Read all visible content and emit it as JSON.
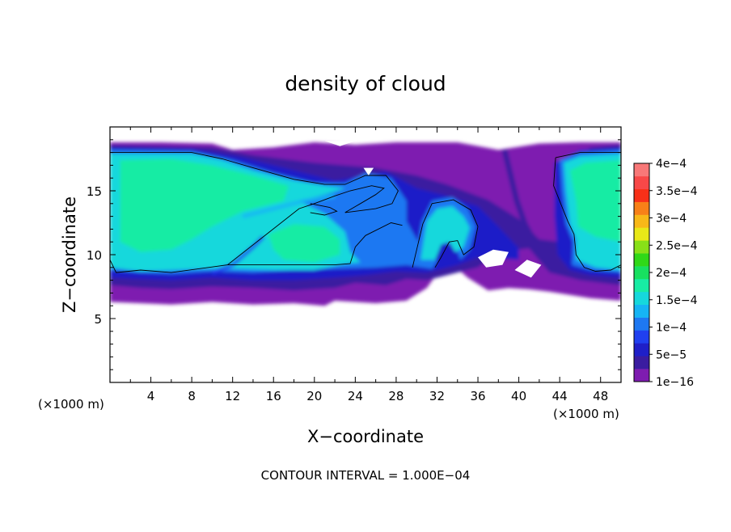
{
  "chart_data": {
    "type": "heatmap",
    "title": "density of cloud",
    "xlabel": "X−coordinate",
    "ylabel": "Z−coordinate",
    "x_unit_left": "(×1000 m)",
    "x_unit_right": "(×1000 m)",
    "footer": "CONTOUR INTERVAL = 1.000E−04",
    "xlim": [
      0,
      50
    ],
    "ylim": [
      0,
      20
    ],
    "xticks": [
      4,
      8,
      12,
      16,
      20,
      24,
      28,
      32,
      36,
      40,
      44,
      48
    ],
    "xtick_labels": [
      "4",
      "8",
      "12",
      "16",
      "20",
      "24",
      "28",
      "32",
      "36",
      "40",
      "44",
      "48"
    ],
    "yticks": [
      5,
      10,
      15
    ],
    "ytick_labels": [
      "5",
      "10",
      "15"
    ],
    "colorbar": {
      "levels": [
        1e-16,
        2.5e-05,
        5e-05,
        7.5e-05,
        0.0001,
        0.000125,
        0.00015,
        0.000175,
        0.0002,
        0.000225,
        0.00025,
        0.000275,
        0.0003,
        0.000325,
        0.00035,
        0.000375,
        0.0004
      ],
      "colors": [
        "#7e1cb0",
        "#3a1ca0",
        "#1f1fc8",
        "#2040f0",
        "#1e78f2",
        "#16b4f4",
        "#16d8dc",
        "#18eca4",
        "#18e060",
        "#30d818",
        "#88e018",
        "#e8e818",
        "#f8b818",
        "#f88018",
        "#f83018",
        "#f84848",
        "#f87878"
      ],
      "labels": [
        {
          "text": "4e−4",
          "value": 0.0004
        },
        {
          "text": "3.5e−4",
          "value": 0.00035
        },
        {
          "text": "3e−4",
          "value": 0.0003
        },
        {
          "text": "2.5e−4",
          "value": 0.00025
        },
        {
          "text": "2e−4",
          "value": 0.0002
        },
        {
          "text": "1.5e−4",
          "value": 0.00015
        },
        {
          "text": "1e−4",
          "value": 0.0001
        },
        {
          "text": "5e−5",
          "value": 5e-05
        },
        {
          "text": "1e−16",
          "value": 1e-16
        }
      ]
    },
    "features": [
      {
        "kind": "cloud-layer",
        "x": [
          0,
          50
        ],
        "z": [
          6.2,
          18.8
        ]
      },
      {
        "kind": "high-density-region",
        "x": [
          0.5,
          23
        ],
        "z": [
          8.8,
          18.2
        ],
        "value": 0.00016
      },
      {
        "kind": "high-density-region",
        "x": [
          43,
          50
        ],
        "z": [
          8.5,
          18
        ],
        "value": 0.00016
      },
      {
        "kind": "rising-plume",
        "x": [
          29,
          36
        ],
        "z": [
          8.5,
          14.2
        ],
        "value": 0.00012
      },
      {
        "kind": "curling-eddy",
        "x": [
          22,
          30
        ],
        "z": [
          12,
          16.5
        ],
        "value": 0.00012
      }
    ]
  }
}
